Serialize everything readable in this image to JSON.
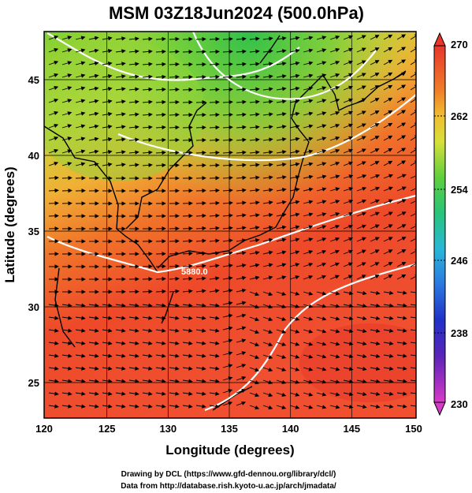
{
  "title": "MSM 03Z18Jun2024 (500.0hPa)",
  "xlabel": "Longitude (degrees)",
  "ylabel": "Latitude  (degrees)",
  "x_ticks": [
    "120",
    "125",
    "130",
    "135",
    "140",
    "145",
    "150"
  ],
  "y_ticks": [
    "25",
    "30",
    "35",
    "40",
    "45"
  ],
  "colorbar_ticks": [
    "270",
    "262",
    "254",
    "246",
    "238",
    "230"
  ],
  "contour_label": "5880.0",
  "credit_line1": "Drawing by DCL (https://www.gfd-dennou.org/library/dcl/)",
  "credit_line2": "Data from http://database.rish.kyoto-u.ac.jp/arch/jmadata/",
  "map": {
    "lon_range": [
      120,
      150
    ],
    "lat_range": [
      22.5,
      48
    ],
    "field": "temperature",
    "units": "K",
    "color_range": [
      230,
      270
    ]
  },
  "colors": {
    "warm": "#f03a2a",
    "mid": "#f08a28",
    "cool": "#7fd23a",
    "contour": "#ffffff"
  }
}
